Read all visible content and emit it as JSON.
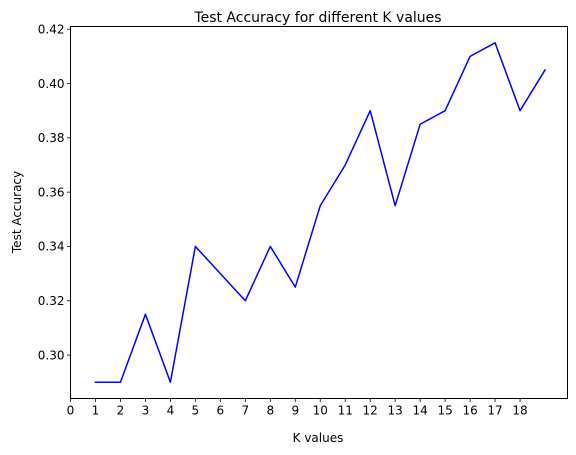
{
  "chart_data": {
    "type": "line",
    "title": "Test Accuracy for different K values",
    "xlabel": "K values",
    "ylabel": "Test Accuracy",
    "xlim": [
      0,
      19.9
    ],
    "ylim": [
      0.284,
      0.421
    ],
    "xticks": [
      "0",
      "1",
      "2",
      "3",
      "4",
      "5",
      "6",
      "7",
      "8",
      "9",
      "10",
      "11",
      "12",
      "13",
      "14",
      "15",
      "16",
      "17",
      "18"
    ],
    "yticks": [
      "0.30",
      "0.32",
      "0.34",
      "0.36",
      "0.38",
      "0.40",
      "0.42"
    ],
    "grid": false,
    "series": [
      {
        "color": "#0000ff",
        "x": [
          1,
          2,
          3,
          4,
          5,
          6,
          7,
          8,
          9,
          10,
          11,
          12,
          13,
          14,
          15,
          16,
          17,
          18,
          19
        ],
        "y": [
          0.29,
          0.29,
          0.315,
          0.29,
          0.34,
          0.33,
          0.32,
          0.34,
          0.325,
          0.355,
          0.37,
          0.39,
          0.355,
          0.385,
          0.39,
          0.41,
          0.415,
          0.39,
          0.405
        ]
      }
    ]
  }
}
